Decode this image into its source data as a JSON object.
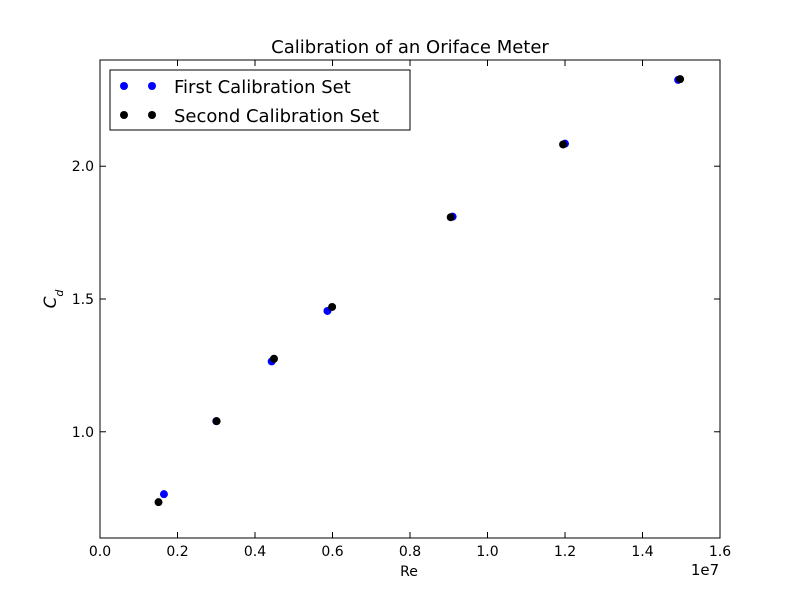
{
  "chart_data": {
    "type": "scatter",
    "title": "Calibration of an Oriface Meter",
    "xlabel": "Re",
    "ylabel_base": "C",
    "ylabel_sub": "d",
    "xlim": [
      0,
      16000000
    ],
    "ylim": [
      0.6,
      2.4
    ],
    "x_ticks": [
      0,
      2000000,
      4000000,
      6000000,
      8000000,
      10000000,
      12000000,
      14000000,
      16000000
    ],
    "x_tick_labels": [
      "0.0",
      "0.2",
      "0.4",
      "0.6",
      "0.8",
      "1.0",
      "1.2",
      "1.4",
      "1.6"
    ],
    "x_offset_label": "1e7",
    "y_ticks": [
      1.0,
      1.5,
      2.0
    ],
    "y_tick_labels": [
      "1.0",
      "1.5",
      "2.0"
    ],
    "grid": false,
    "legend_position": "top-left",
    "series": [
      {
        "name": "First Calibration Set",
        "color": "#0000ff",
        "x": [
          1650000,
          3000000,
          4430000,
          5870000,
          9100000,
          12000000,
          14920000
        ],
        "y": [
          0.765,
          1.04,
          1.265,
          1.455,
          1.81,
          2.085,
          2.325
        ]
      },
      {
        "name": "Second Calibration Set",
        "color": "#000000",
        "x": [
          1510000,
          3010000,
          4490000,
          5990000,
          9050000,
          11950000,
          14970000
        ],
        "y": [
          0.735,
          1.04,
          1.275,
          1.47,
          1.808,
          2.082,
          2.328
        ]
      }
    ]
  }
}
